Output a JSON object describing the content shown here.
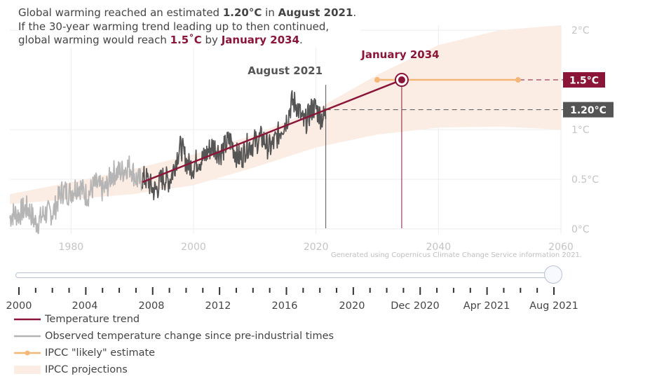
{
  "headline": {
    "line1_pre": "Global warming reached an estimated ",
    "line1_value": "1.20°C",
    "line1_mid": " in ",
    "line1_date": "August 2021",
    "line1_post": ".",
    "line2": "If the 30-year warming trend leading up to then continued,",
    "line3_pre": "global warming would reach ",
    "line3_value": "1.5˚C",
    "line3_mid": " by ",
    "line3_date": "January 2034",
    "line3_post": "."
  },
  "annotations": {
    "crossing_date": "January 2034",
    "current_date": "August 2021",
    "badge_target": "1.5°C",
    "badge_current": "1.20°C",
    "credit": "Generated using Copernicus Climate Change Service information 2021."
  },
  "colors": {
    "trend": "#8a1538",
    "observed_recent": "#555555",
    "observed_early": "#b5b5b5",
    "likely": "#f4b778",
    "projections": "#fbece4",
    "badge_current": "#555555"
  },
  "chart_data": {
    "type": "line",
    "x_range": [
      1970,
      2060
    ],
    "y_range": [
      -0.05,
      2.05
    ],
    "x_ticks": [
      "1980",
      "2000",
      "2020",
      "2040",
      "2060"
    ],
    "x_tick_values": [
      1980,
      2000,
      2020,
      2040,
      2060
    ],
    "y_ticks": [
      "0°C",
      "0.5°C",
      "1°C",
      "2°C"
    ],
    "y_tick_values": [
      0,
      0.5,
      1,
      2
    ],
    "grid": true,
    "legend_placement": "bottom-left",
    "series": [
      {
        "name": "Temperature trend",
        "kind": "line",
        "x": [
          1991.6,
          2034.0
        ],
        "y": [
          0.47,
          1.5
        ]
      },
      {
        "name": "Observed temperature change since pre-industrial times",
        "kind": "monthly",
        "x_start": 1970.0,
        "x_end": 2021.6,
        "x_split": 1991.6,
        "anchors_x": [
          1970,
          1972,
          1974,
          1976,
          1978,
          1980,
          1982,
          1984,
          1986,
          1988,
          1990,
          1992,
          1994,
          1996,
          1998,
          2000,
          2002,
          2004,
          2006,
          2008,
          2010,
          2012,
          2014,
          2016,
          2018,
          2020,
          2021.6
        ],
        "anchors_y": [
          0.08,
          0.22,
          0.1,
          0.12,
          0.3,
          0.42,
          0.38,
          0.4,
          0.45,
          0.62,
          0.58,
          0.47,
          0.42,
          0.52,
          0.8,
          0.6,
          0.78,
          0.8,
          0.85,
          0.72,
          0.92,
          0.84,
          0.92,
          1.28,
          1.1,
          1.2,
          1.14
        ]
      },
      {
        "name": "IPCC \"likely\" estimate",
        "kind": "range",
        "x": [
          2030.0,
          2053.0
        ],
        "y": [
          1.5,
          1.5
        ]
      },
      {
        "name": "IPCC projections",
        "kind": "band",
        "x": [
          1970,
          1980,
          1990,
          2000,
          2010,
          2020,
          2030,
          2040,
          2050,
          2060
        ],
        "lower": [
          0.25,
          0.3,
          0.35,
          0.44,
          0.62,
          0.82,
          0.95,
          1.02,
          1.03,
          1.0
        ],
        "upper": [
          0.35,
          0.47,
          0.6,
          0.75,
          0.95,
          1.2,
          1.55,
          1.85,
          2.0,
          2.05
        ]
      }
    ],
    "markers": {
      "current": {
        "x": 2021.6,
        "y": 1.2,
        "label": "August 2021"
      },
      "crossing": {
        "x": 2034.0,
        "y": 1.5,
        "label": "January 2034"
      }
    }
  },
  "timeline": {
    "tick_labels": [
      "2000",
      "2004",
      "2008",
      "2012",
      "2016",
      "2020",
      "Dec 2020",
      "Apr 2021",
      "Aug 2021"
    ],
    "value": "Aug 2021"
  },
  "legend": [
    {
      "label": "Temperature trend",
      "kind": "trend"
    },
    {
      "label": "Observed temperature change since pre-industrial times",
      "kind": "observed"
    },
    {
      "label": "IPCC \"likely\" estimate",
      "kind": "likely"
    },
    {
      "label": "IPCC projections",
      "kind": "projections"
    }
  ]
}
